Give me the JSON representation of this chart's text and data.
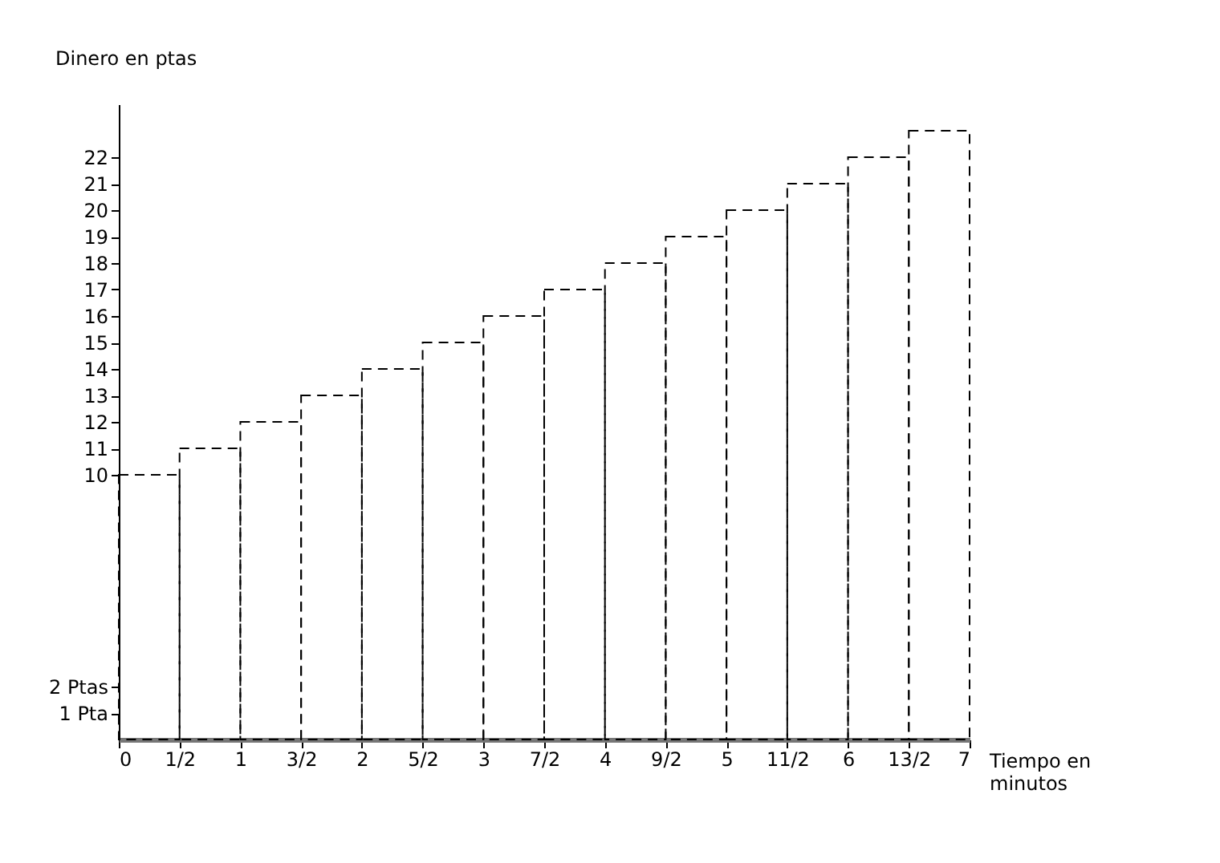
{
  "chart_data": {
    "type": "histogram",
    "xlabel": "Tiempo en minutos",
    "ylabel": "Dinero en ptas",
    "bins": [
      0,
      0.5,
      1,
      1.5,
      2,
      2.5,
      3,
      3.5,
      4,
      4.5,
      5,
      5.5,
      6,
      6.5,
      7
    ],
    "values": [
      10,
      11,
      12,
      13,
      14,
      15,
      16,
      17,
      18,
      19,
      20,
      21,
      22,
      23
    ],
    "color": "#000000",
    "line_style": "dashed",
    "xlim": [
      0,
      7
    ],
    "xticks": [
      0,
      {
        "value": 0.5,
        "label": "1/2"
      },
      1,
      {
        "value": 1.5,
        "label": "3/2"
      },
      2,
      {
        "value": 2.5,
        "label": "5/2"
      },
      3,
      {
        "value": 3.5,
        "label": "7/2"
      },
      4,
      {
        "value": 4.5,
        "label": "9/2"
      },
      5,
      {
        "value": 5.5,
        "label": "11/2"
      },
      6,
      {
        "value": 6.5,
        "label": "13/2"
      },
      7
    ],
    "ylim": [
      0,
      24
    ],
    "yticks": [
      {
        "value": 1,
        "label": "1 Pta"
      },
      {
        "value": 2,
        "label": "2 Ptas"
      },
      10,
      11,
      12,
      13,
      14,
      15,
      16,
      17,
      18,
      19,
      20,
      21,
      22
    ],
    "grid": false
  }
}
